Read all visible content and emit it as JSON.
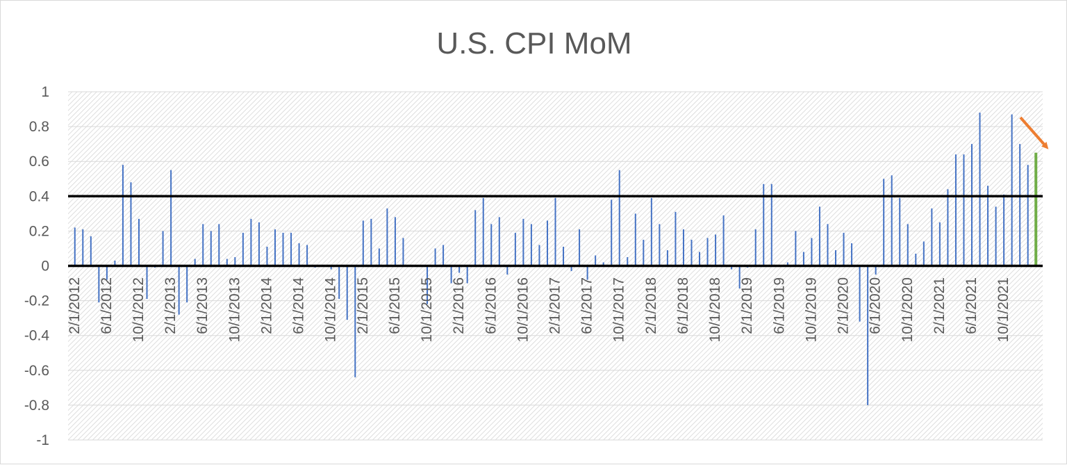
{
  "chart_data": {
    "type": "bar",
    "title": "U.S. CPI MoM",
    "xlabel": "",
    "ylabel": "",
    "ylim": [
      -1,
      1
    ],
    "yticks": [
      "1",
      "0.8",
      "0.6",
      "0.4",
      "0.2",
      "0",
      "-0.2",
      "-0.4",
      "-0.6",
      "-0.8",
      "-1"
    ],
    "ytick_values": [
      1,
      0.8,
      0.6,
      0.4,
      0.2,
      0,
      -0.2,
      -0.4,
      -0.6,
      -0.8,
      -1
    ],
    "x_tick_labels": [
      "2/1/2012",
      "6/1/2012",
      "10/1/2012",
      "2/1/2013",
      "6/1/2013",
      "10/1/2013",
      "2/1/2014",
      "6/1/2014",
      "10/1/2014",
      "2/1/2015",
      "6/1/2015",
      "10/1/2015",
      "2/1/2016",
      "6/1/2016",
      "10/1/2016",
      "2/1/2017",
      "6/1/2017",
      "10/1/2017",
      "2/1/2018",
      "6/1/2018",
      "10/1/2018",
      "2/1/2019",
      "6/1/2019",
      "10/1/2019",
      "2/1/2020",
      "6/1/2020",
      "10/1/2020",
      "2/1/2021",
      "6/1/2021",
      "10/1/2021"
    ],
    "series": [
      {
        "color": "#4472c4",
        "highlight_last_color": "#70ad47",
        "values": [
          0.22,
          0.21,
          0.17,
          -0.21,
          -0.08,
          0.03,
          0.58,
          0.48,
          0.27,
          -0.19,
          -0.01,
          0.2,
          0.55,
          -0.28,
          -0.21,
          0.04,
          0.24,
          0.2,
          0.24,
          0.04,
          0.05,
          0.19,
          0.27,
          0.25,
          0.11,
          0.21,
          0.19,
          0.19,
          0.13,
          0.12,
          -0.01,
          0.0,
          -0.02,
          -0.19,
          -0.31,
          -0.64,
          0.26,
          0.27,
          0.1,
          0.33,
          0.28,
          0.16,
          0.0,
          0.0,
          -0.22,
          0.1,
          0.12,
          -0.1,
          -0.04,
          -0.1,
          0.32,
          0.39,
          0.24,
          0.28,
          -0.05,
          0.19,
          0.27,
          0.24,
          0.12,
          0.26,
          0.39,
          0.11,
          -0.03,
          0.21,
          -0.08,
          0.06,
          0.02,
          0.38,
          0.55,
          0.05,
          0.3,
          0.15,
          0.39,
          0.24,
          0.09,
          0.31,
          0.21,
          0.15,
          0.08,
          0.16,
          0.18,
          0.29,
          -0.02,
          -0.13,
          -0.01,
          0.21,
          0.47,
          0.47,
          0.0,
          0.02,
          0.2,
          0.08,
          0.16,
          0.34,
          0.24,
          0.09,
          0.19,
          0.13,
          -0.32,
          -0.8,
          -0.05,
          0.5,
          0.52,
          0.39,
          0.24,
          0.07,
          0.14,
          0.33,
          0.25,
          0.44,
          0.64,
          0.64,
          0.7,
          0.88,
          0.46,
          0.34,
          0.41,
          0.87,
          0.7,
          0.58,
          0.65
        ]
      }
    ],
    "reference_lines": [
      0.4,
      0
    ],
    "annotation_arrow_color": "#ed7d31",
    "grid": true,
    "legend": "none"
  }
}
